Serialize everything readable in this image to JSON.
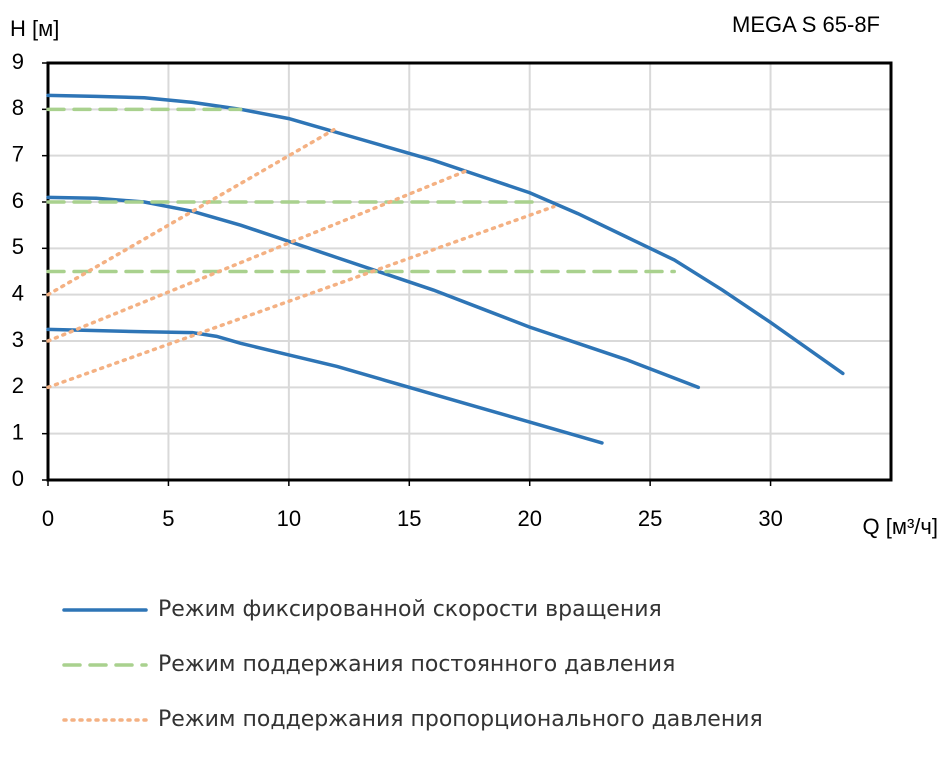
{
  "chart_data": {
    "type": "line",
    "title": "MEGA S 65-8F",
    "ylabel": "H [м]",
    "xlabel": "Q [м³/ч]",
    "xlim": [
      0,
      35
    ],
    "xticks": [
      0,
      5,
      10,
      15,
      20,
      25,
      30
    ],
    "ylim": [
      0,
      9
    ],
    "yticks": [
      0,
      1,
      2,
      3,
      4,
      5,
      6,
      7,
      8,
      9
    ],
    "grid": true,
    "series": [
      {
        "name": "Режим фиксированной скорости вращения",
        "color": "#2e75b6",
        "dash": "solid",
        "lines": [
          {
            "x": [
              0,
              2,
              4,
              6,
              8,
              10,
              12,
              14,
              16,
              18,
              20,
              22,
              24,
              26,
              28,
              30,
              33
            ],
            "values": [
              8.3,
              8.28,
              8.25,
              8.15,
              8.0,
              7.8,
              7.5,
              7.2,
              6.9,
              6.55,
              6.2,
              5.75,
              5.25,
              4.75,
              4.1,
              3.4,
              2.3
            ]
          },
          {
            "x": [
              0,
              2,
              4,
              6,
              8,
              10,
              12,
              14,
              16,
              18,
              20,
              22,
              24,
              27
            ],
            "values": [
              6.1,
              6.08,
              6.0,
              5.8,
              5.5,
              5.15,
              4.8,
              4.45,
              4.1,
              3.7,
              3.3,
              2.95,
              2.6,
              2.0
            ]
          },
          {
            "x": [
              0,
              4,
              6,
              7,
              8,
              10,
              12,
              14,
              16,
              18,
              20,
              23
            ],
            "values": [
              3.25,
              3.2,
              3.18,
              3.1,
              2.95,
              2.7,
              2.45,
              2.15,
              1.85,
              1.55,
              1.25,
              0.8
            ]
          }
        ]
      },
      {
        "name": "Режим поддержания постоянного давления",
        "color": "#a9d18e",
        "dash": "dashed",
        "lines": [
          {
            "x": [
              0,
              8
            ],
            "values": [
              8,
              8
            ]
          },
          {
            "x": [
              0,
              20.5
            ],
            "values": [
              6,
              6
            ]
          },
          {
            "x": [
              0,
              26
            ],
            "values": [
              4.5,
              4.5
            ]
          }
        ]
      },
      {
        "name": "Режим поддержания пропорционального давления",
        "color": "#f4b183",
        "dash": "dotted",
        "lines": [
          {
            "x": [
              0,
              12
            ],
            "values": [
              4,
              7.6
            ]
          },
          {
            "x": [
              0,
              17.5
            ],
            "values": [
              3,
              6.7
            ]
          },
          {
            "x": [
              0,
              21
            ],
            "values": [
              2,
              5.9
            ]
          }
        ]
      }
    ]
  }
}
